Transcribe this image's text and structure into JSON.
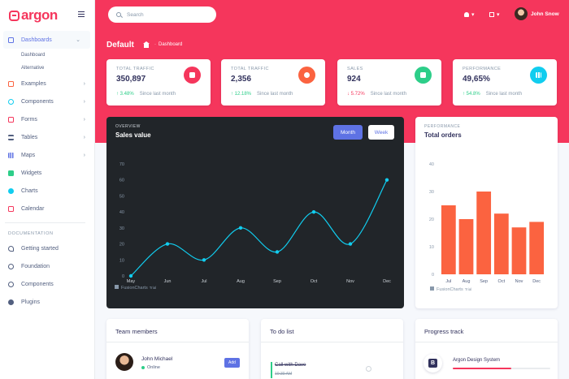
{
  "sidebar": {
    "brand": "argon",
    "nav": [
      {
        "label": "Dashboards",
        "icon": "house-icon",
        "color": "#5e72e4"
      },
      {
        "label": "Examples",
        "icon": "ship-icon",
        "color": "#fb6340"
      },
      {
        "label": "Components",
        "icon": "ui-icon",
        "color": "#11cdef"
      },
      {
        "label": "Forms",
        "icon": "forms-icon",
        "color": "#f5365c"
      },
      {
        "label": "Tables",
        "icon": "table-icon",
        "color": "#525f7f"
      },
      {
        "label": "Maps",
        "icon": "map-icon",
        "color": "#5e72e4"
      },
      {
        "label": "Widgets",
        "icon": "widget-icon",
        "color": "#2dce89"
      },
      {
        "label": "Charts",
        "icon": "chart-icon",
        "color": "#11cdef"
      },
      {
        "label": "Calendar",
        "icon": "calendar-icon",
        "color": "#f5365c"
      }
    ],
    "sub": [
      "Dashboard",
      "Alternative"
    ],
    "doc_heading": "DOCUMENTATION",
    "docs": [
      {
        "label": "Getting started",
        "icon": "rocket-icon"
      },
      {
        "label": "Foundation",
        "icon": "palette-icon"
      },
      {
        "label": "Components",
        "icon": "ui-icon"
      },
      {
        "label": "Plugins",
        "icon": "chart-pie-icon"
      }
    ]
  },
  "header": {
    "search_placeholder": "Search",
    "user_name": "John Snow",
    "page_title": "Default",
    "breadcrumb": "Dashboard"
  },
  "stats": [
    {
      "label": "TOTAL TRAFFIC",
      "value": "350,897",
      "change": "3.48%",
      "dir": "up",
      "since": "Since last month",
      "color": "#f5365c"
    },
    {
      "label": "TOTAL TRAFFIC",
      "value": "2,356",
      "change": "12.18%",
      "dir": "up",
      "since": "Since last month",
      "color": "#fb6340"
    },
    {
      "label": "SALES",
      "value": "924",
      "change": "5.72%",
      "dir": "down",
      "since": "Since last month",
      "color": "#2dce89"
    },
    {
      "label": "PERFORMANCE",
      "value": "49,65%",
      "change": "54.8%",
      "dir": "up",
      "since": "Since last month",
      "color": "#11cdef"
    }
  ],
  "sales": {
    "overline": "OVERVIEW",
    "title": "Sales value",
    "btn_month": "Month",
    "btn_week": "Week",
    "watermark": "FusionCharts",
    "watermark_trial": "Trial"
  },
  "orders": {
    "overline": "PERFORMANCE",
    "title": "Total orders",
    "watermark": "FusionCharts",
    "watermark_trial": "Trial"
  },
  "team": {
    "title": "Team members",
    "member_name": "John Michael",
    "status": "Online",
    "add_label": "Add"
  },
  "todo": {
    "title": "To do list",
    "item": "Call with Dave",
    "time": "10:30 AM"
  },
  "progress": {
    "title": "Progress track",
    "project": "Argon Design System",
    "level": 0.6
  },
  "chart_data": [
    {
      "type": "line",
      "title": "Sales value",
      "categories": [
        "May",
        "Jun",
        "Jul",
        "Aug",
        "Sep",
        "Oct",
        "Nov",
        "Dec"
      ],
      "values": [
        0,
        20,
        10,
        30,
        15,
        40,
        20,
        60
      ],
      "ylim": [
        0,
        70
      ],
      "yticks": [
        0,
        10,
        20,
        30,
        40,
        50,
        60,
        70
      ],
      "color": "#11cdef",
      "grid": false
    },
    {
      "type": "bar",
      "title": "Total orders",
      "categories": [
        "Jul",
        "Aug",
        "Sep",
        "Oct",
        "Nov",
        "Dec"
      ],
      "values": [
        25,
        20,
        30,
        22,
        17,
        19
      ],
      "ylim": [
        0,
        40
      ],
      "yticks": [
        0,
        10,
        20,
        30,
        40
      ],
      "color": "#fb6340",
      "grid": false
    }
  ]
}
